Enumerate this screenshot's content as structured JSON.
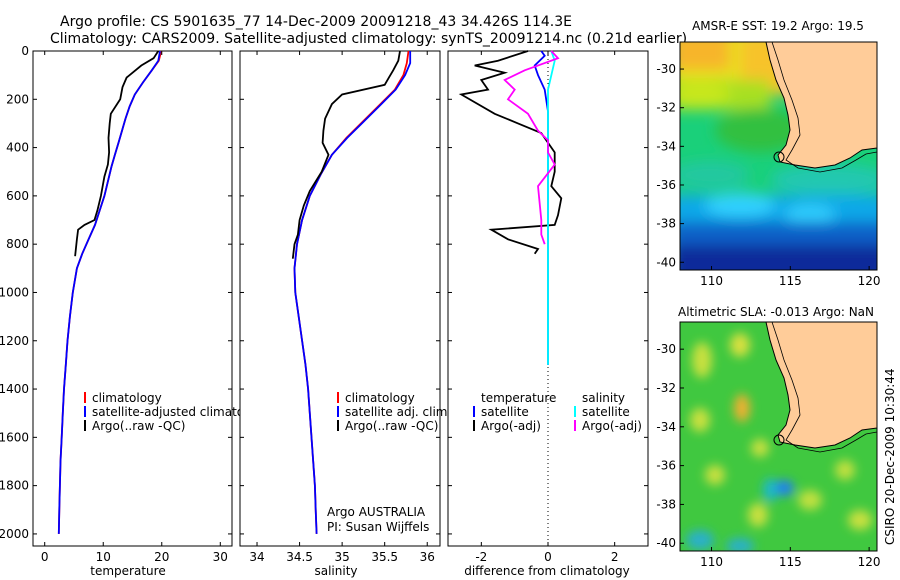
{
  "title_line1": "Argo profile: CS 5901635_77 14-Dec-2009 20091218_43 34.426S 114.3E",
  "title_line2": "Climatology: CARS2009. Satellite-adjusted climatology: synTS_20091214.nc (0.21d earlier)",
  "credit": "CSIRO 20-Dec-2009 10:30:44",
  "chart_data": [
    {
      "type": "line",
      "xlabel": "temperature",
      "xlim": [
        -2,
        32
      ],
      "xticks": [
        "0",
        "10",
        "20",
        "30"
      ],
      "ylim": [
        2050,
        0
      ],
      "yticks": [
        "0",
        "200",
        "400",
        "600",
        "800",
        "1000",
        "1200",
        "1400",
        "1600",
        "1800",
        "2000"
      ],
      "legend": [
        "climatology",
        "satellite-adjusted climatology",
        "Argo(..raw -QC)"
      ],
      "series": [
        {
          "name": "climatology",
          "color": "#ff0000",
          "points": [
            [
              19.9,
              0
            ],
            [
              19.5,
              40
            ],
            [
              18.3,
              80
            ],
            [
              16.8,
              130
            ],
            [
              15.4,
              180
            ],
            [
              14.5,
              230
            ],
            [
              13.8,
              280
            ],
            [
              13.2,
              330
            ],
            [
              12.6,
              380
            ],
            [
              12.0,
              430
            ],
            [
              11.4,
              480
            ],
            [
              10.8,
              540
            ],
            [
              10.2,
              600
            ],
            [
              9.4,
              660
            ],
            [
              8.6,
              720
            ],
            [
              7.5,
              780
            ],
            [
              6.4,
              840
            ],
            [
              5.5,
              900
            ],
            [
              4.8,
              1000
            ],
            [
              4.3,
              1100
            ],
            [
              3.9,
              1200
            ],
            [
              3.6,
              1300
            ],
            [
              3.3,
              1400
            ],
            [
              3.1,
              1500
            ],
            [
              2.9,
              1600
            ],
            [
              2.7,
              1700
            ],
            [
              2.6,
              1800
            ],
            [
              2.5,
              1900
            ],
            [
              2.4,
              2000
            ]
          ]
        },
        {
          "name": "satellite-adjusted climatology",
          "color": "#0000ff",
          "points": [
            [
              19.7,
              0
            ],
            [
              19.4,
              40
            ],
            [
              18.3,
              80
            ],
            [
              16.8,
              130
            ],
            [
              15.4,
              180
            ],
            [
              14.5,
              230
            ],
            [
              13.8,
              280
            ],
            [
              13.2,
              330
            ],
            [
              12.6,
              380
            ],
            [
              12.0,
              430
            ],
            [
              11.4,
              480
            ],
            [
              10.8,
              540
            ],
            [
              10.2,
              600
            ],
            [
              9.4,
              660
            ],
            [
              8.6,
              720
            ],
            [
              7.5,
              780
            ],
            [
              6.4,
              840
            ],
            [
              5.5,
              900
            ],
            [
              4.8,
              1000
            ],
            [
              4.3,
              1100
            ],
            [
              3.9,
              1200
            ],
            [
              3.6,
              1300
            ],
            [
              3.3,
              1400
            ],
            [
              3.1,
              1500
            ],
            [
              2.9,
              1600
            ],
            [
              2.7,
              1700
            ],
            [
              2.6,
              1800
            ],
            [
              2.5,
              1900
            ],
            [
              2.4,
              2000
            ]
          ]
        },
        {
          "name": "Argo(..raw -QC)",
          "color": "#000000",
          "points": [
            [
              19.4,
              0
            ],
            [
              18.6,
              30
            ],
            [
              16.5,
              60
            ],
            [
              14.0,
              110
            ],
            [
              13.3,
              150
            ],
            [
              12.9,
              200
            ],
            [
              11.3,
              260
            ],
            [
              11.1,
              300
            ],
            [
              10.9,
              360
            ],
            [
              11.0,
              420
            ],
            [
              10.8,
              470
            ],
            [
              10.2,
              520
            ],
            [
              9.6,
              600
            ],
            [
              9.0,
              660
            ],
            [
              8.5,
              700
            ],
            [
              6.8,
              720
            ],
            [
              5.7,
              740
            ],
            [
              5.5,
              780
            ],
            [
              5.2,
              850
            ]
          ]
        }
      ]
    },
    {
      "type": "line",
      "xlabel": "salinity",
      "xlim": [
        33.8,
        36.15
      ],
      "xticks": [
        "34",
        "34.5",
        "35",
        "35.5",
        "36"
      ],
      "ylim": [
        2050,
        0
      ],
      "legend": [
        "climatology",
        "satellite adj. clim.",
        "Argo(..raw -QC)"
      ],
      "annotation": [
        "Argo AUSTRALIA",
        "PI: Susan Wijffels"
      ],
      "series": [
        {
          "name": "climatology",
          "color": "#ff0000",
          "points": [
            [
              35.78,
              0
            ],
            [
              35.76,
              50
            ],
            [
              35.72,
              100
            ],
            [
              35.62,
              160
            ],
            [
              35.45,
              220
            ],
            [
              35.25,
              290
            ],
            [
              35.05,
              360
            ],
            [
              34.88,
              430
            ],
            [
              34.75,
              510
            ],
            [
              34.62,
              600
            ],
            [
              34.53,
              700
            ],
            [
              34.47,
              800
            ],
            [
              34.44,
              900
            ],
            [
              34.45,
              1000
            ],
            [
              34.49,
              1100
            ],
            [
              34.53,
              1200
            ],
            [
              34.57,
              1300
            ],
            [
              34.6,
              1400
            ],
            [
              34.62,
              1500
            ],
            [
              34.64,
              1600
            ],
            [
              34.66,
              1700
            ],
            [
              34.68,
              1800
            ],
            [
              34.69,
              1900
            ],
            [
              34.7,
              2000
            ]
          ]
        },
        {
          "name": "satellite adj. clim.",
          "color": "#0000ff",
          "points": [
            [
              35.8,
              0
            ],
            [
              35.8,
              50
            ],
            [
              35.74,
              100
            ],
            [
              35.63,
              160
            ],
            [
              35.46,
              220
            ],
            [
              35.26,
              290
            ],
            [
              35.06,
              360
            ],
            [
              34.88,
              430
            ],
            [
              34.75,
              510
            ],
            [
              34.62,
              600
            ],
            [
              34.53,
              700
            ],
            [
              34.47,
              800
            ],
            [
              34.44,
              900
            ],
            [
              34.45,
              1000
            ],
            [
              34.49,
              1100
            ],
            [
              34.53,
              1200
            ],
            [
              34.57,
              1300
            ],
            [
              34.6,
              1400
            ],
            [
              34.62,
              1500
            ],
            [
              34.64,
              1600
            ],
            [
              34.66,
              1700
            ],
            [
              34.68,
              1800
            ],
            [
              34.69,
              1900
            ],
            [
              34.7,
              2000
            ]
          ]
        },
        {
          "name": "Argo(..raw -QC)",
          "color": "#000000",
          "points": [
            [
              35.68,
              0
            ],
            [
              35.66,
              40
            ],
            [
              35.6,
              80
            ],
            [
              35.55,
              110
            ],
            [
              35.5,
              140
            ],
            [
              35.0,
              180
            ],
            [
              34.88,
              220
            ],
            [
              34.8,
              280
            ],
            [
              34.78,
              330
            ],
            [
              34.77,
              380
            ],
            [
              34.84,
              430
            ],
            [
              34.76,
              500
            ],
            [
              34.62,
              580
            ],
            [
              34.55,
              640
            ],
            [
              34.5,
              700
            ],
            [
              34.48,
              760
            ],
            [
              34.44,
              800
            ],
            [
              34.42,
              860
            ]
          ]
        }
      ]
    },
    {
      "type": "line",
      "xlabel": "difference from climatology",
      "xlim": [
        -3,
        3
      ],
      "xticks": [
        "-2",
        "0",
        "2"
      ],
      "ylim": [
        2050,
        0
      ],
      "legend_headers": [
        "temperature",
        "salinity"
      ],
      "legend": [
        "satellite",
        "Argo(-adj)",
        "satellite",
        "Argo(-adj)"
      ],
      "series": [
        {
          "name": "satellite",
          "color": "#0000ff",
          "points": [
            [
              -0.2,
              0
            ],
            [
              -0.1,
              20
            ],
            [
              -0.4,
              60
            ],
            [
              -0.3,
              100
            ],
            [
              -0.1,
              160
            ],
            [
              0,
              250
            ],
            [
              0,
              400
            ],
            [
              0,
              600
            ],
            [
              0,
              800
            ],
            [
              0,
              1000
            ],
            [
              0,
              1300
            ]
          ]
        },
        {
          "name": "Argo(-adj)",
          "color": "#000000",
          "points": [
            [
              -0.6,
              0
            ],
            [
              -1.5,
              40
            ],
            [
              -2.2,
              60
            ],
            [
              -1.3,
              90
            ],
            [
              -2.0,
              120
            ],
            [
              -1.8,
              160
            ],
            [
              -2.6,
              180
            ],
            [
              -1.6,
              260
            ],
            [
              -0.9,
              300
            ],
            [
              -0.2,
              340
            ],
            [
              0.2,
              420
            ],
            [
              0.2,
              500
            ],
            [
              0.1,
              560
            ],
            [
              0.4,
              610
            ],
            [
              0.3,
              680
            ],
            [
              0.2,
              720
            ],
            [
              -1.7,
              740
            ],
            [
              -1.2,
              780
            ],
            [
              -0.3,
              820
            ],
            [
              -0.4,
              840
            ]
          ]
        },
        {
          "name": "satellite",
          "color": "#00ffff",
          "points": [
            [
              0.1,
              0
            ],
            [
              0.2,
              40
            ],
            [
              0,
              160
            ],
            [
              0,
              300
            ],
            [
              0,
              500
            ],
            [
              0,
              800
            ],
            [
              0,
              1000
            ],
            [
              0,
              1300
            ]
          ]
        },
        {
          "name": "Argo(-adj)",
          "color": "#ff00ff",
          "points": [
            [
              0.1,
              0
            ],
            [
              0.3,
              30
            ],
            [
              -0.7,
              80
            ],
            [
              -1.3,
              120
            ],
            [
              -1.0,
              160
            ],
            [
              -1.2,
              200
            ],
            [
              -0.6,
              260
            ],
            [
              -0.3,
              330
            ],
            [
              0,
              370
            ],
            [
              0,
              420
            ],
            [
              0.2,
              470
            ],
            [
              -0.3,
              560
            ],
            [
              -0.2,
              700
            ],
            [
              -0.2,
              760
            ],
            [
              -0.1,
              800
            ]
          ]
        }
      ]
    },
    {
      "type": "heatmap",
      "title": "AMSR-E SST: 19.2 Argo: 19.5",
      "xlim": [
        108,
        120.5
      ],
      "ylim": [
        -40.4,
        -28.6
      ],
      "xticks": [
        "110",
        "115",
        "120"
      ],
      "yticks": [
        "-30",
        "-32",
        "-34",
        "-36",
        "-38",
        "-40"
      ],
      "argo_position": [
        114.3,
        -34.426
      ]
    },
    {
      "type": "heatmap",
      "title": "Altimetric SLA: -0.013 Argo: NaN",
      "xlim": [
        108,
        120.5
      ],
      "ylim": [
        -40.4,
        -28.6
      ],
      "xticks": [
        "110",
        "115",
        "120"
      ],
      "yticks": [
        "-30",
        "-32",
        "-34",
        "-36",
        "-38",
        "-40"
      ],
      "argo_position": [
        114.3,
        -34.426
      ]
    }
  ]
}
